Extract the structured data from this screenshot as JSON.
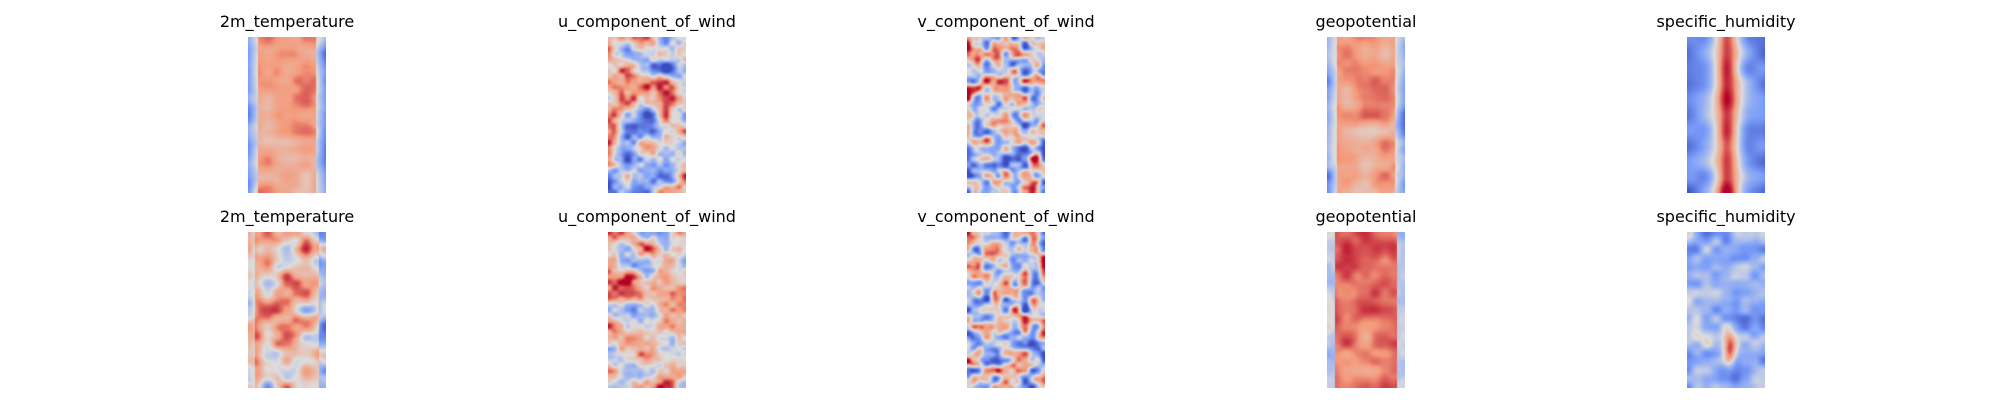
{
  "chart_data": {
    "type": "heatmap",
    "colormap": "coolwarm",
    "axes": "off",
    "rows": 2,
    "columns": 5,
    "panels": [
      {
        "title": "2m_temperature",
        "row": 0,
        "pattern": "warm-band"
      },
      {
        "title": "u_component_of_wind",
        "row": 0,
        "pattern": "streaky"
      },
      {
        "title": "v_component_of_wind",
        "row": 0,
        "pattern": "noisy"
      },
      {
        "title": "geopotential",
        "row": 0,
        "pattern": "warm-band"
      },
      {
        "title": "specific_humidity",
        "row": 0,
        "pattern": "cool-center-warm"
      },
      {
        "title": "2m_temperature",
        "row": 1,
        "pattern": "mixed-warm"
      },
      {
        "title": "u_component_of_wind",
        "row": 1,
        "pattern": "streaky-warm"
      },
      {
        "title": "v_component_of_wind",
        "row": 1,
        "pattern": "noisy"
      },
      {
        "title": "geopotential",
        "row": 1,
        "pattern": "hot-band"
      },
      {
        "title": "specific_humidity",
        "row": 1,
        "pattern": "cool-mottled"
      }
    ]
  }
}
